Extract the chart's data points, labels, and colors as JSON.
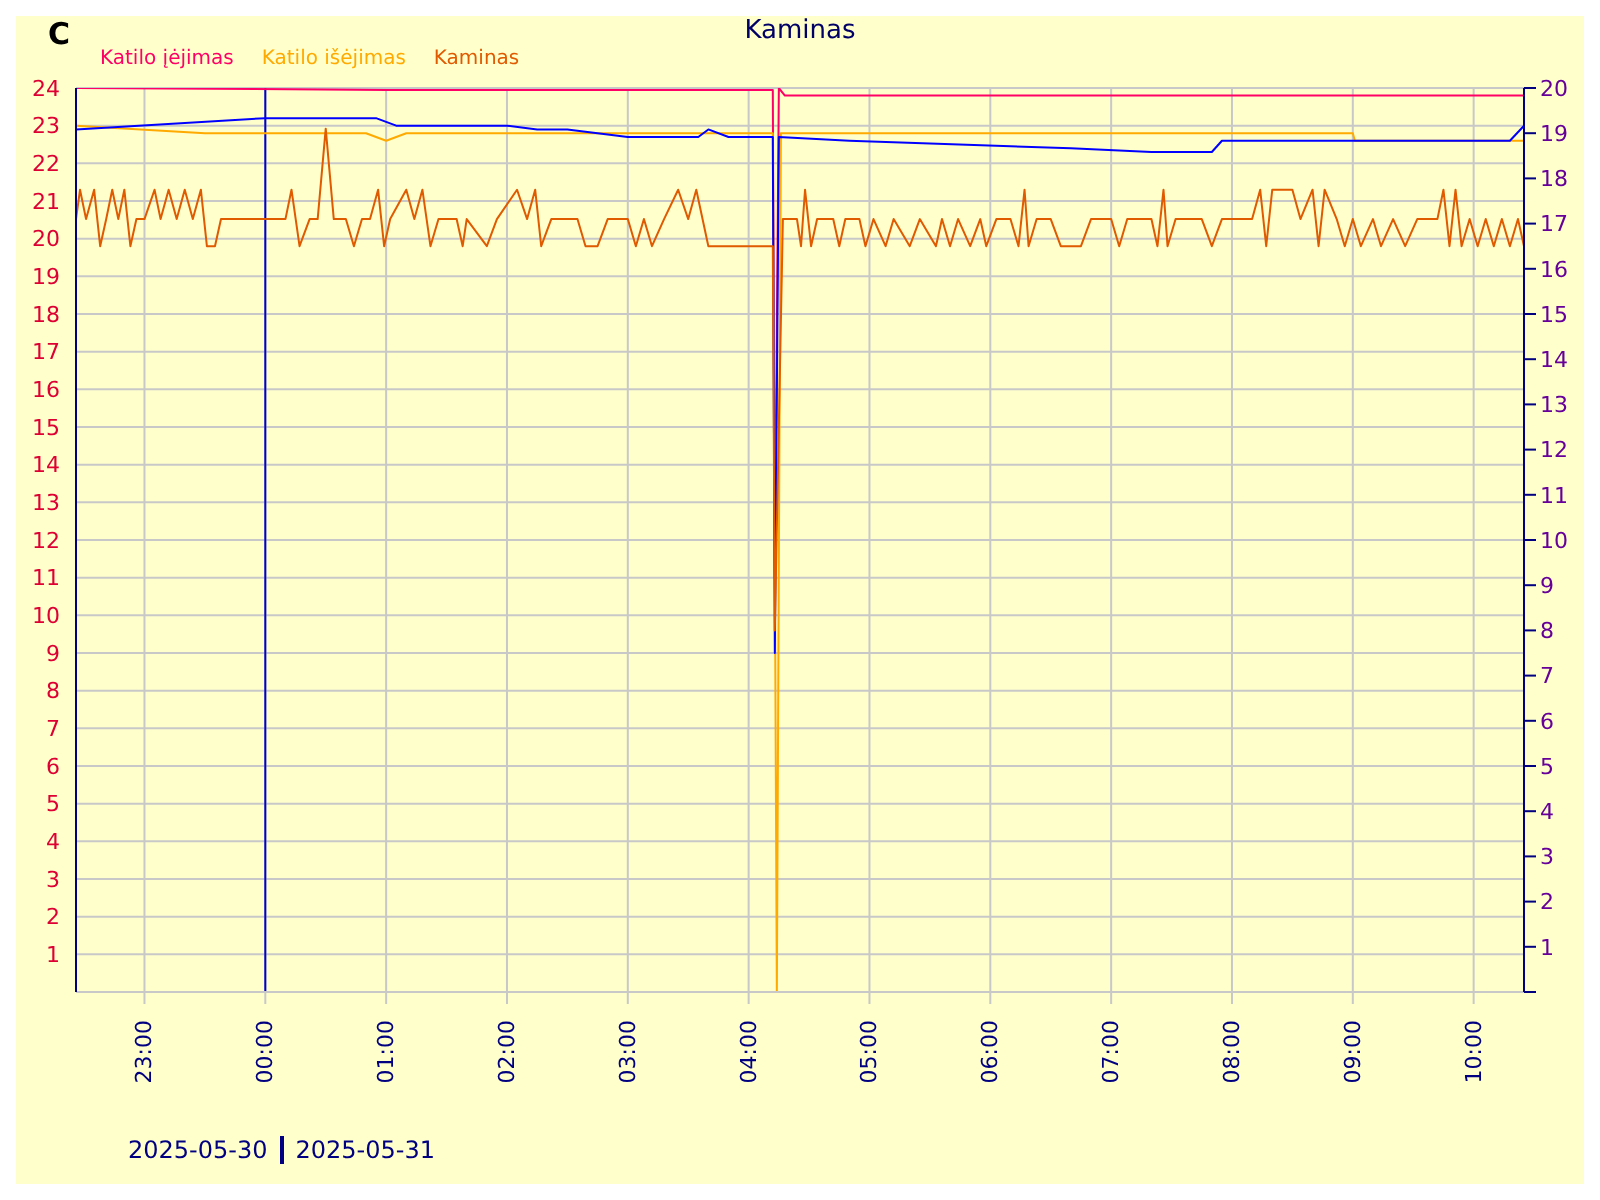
{
  "chart_data": {
    "type": "line",
    "title": "Kaminas",
    "ylabel": "C",
    "annotations": [
      "2025-05-30",
      "2025-05-31"
    ],
    "xlim": [
      "2025-05-30T22:26",
      "2025-05-31T10:25"
    ],
    "xticks": [
      {
        "value": "2025-05-30T23:00",
        "label": "23:00"
      },
      {
        "value": "2025-05-31T00:00",
        "label": "00:00"
      },
      {
        "value": "2025-05-31T01:00",
        "label": "01:00"
      },
      {
        "value": "2025-05-31T02:00",
        "label": "02:00"
      },
      {
        "value": "2025-05-31T03:00",
        "label": "03:00"
      },
      {
        "value": "2025-05-31T04:00",
        "label": "04:00"
      },
      {
        "value": "2025-05-31T05:00",
        "label": "05:00"
      },
      {
        "value": "2025-05-31T06:00",
        "label": "06:00"
      },
      {
        "value": "2025-05-31T07:00",
        "label": "07:00"
      },
      {
        "value": "2025-05-31T08:00",
        "label": "08:00"
      },
      {
        "value": "2025-05-31T09:00",
        "label": "09:00"
      },
      {
        "value": "2025-05-31T10:00",
        "label": "10:00"
      }
    ],
    "ylim": [
      0,
      24
    ],
    "yticks": [
      {
        "value": 0,
        "label": null
      },
      1,
      2,
      3,
      4,
      5,
      6,
      7,
      8,
      9,
      10,
      11,
      12,
      13,
      14,
      15,
      16,
      17,
      18,
      19,
      20,
      21,
      22,
      23,
      24
    ],
    "y2lim": [
      0,
      20
    ],
    "y2ticks": [
      {
        "value": 0,
        "label": null
      },
      1,
      2,
      3,
      4,
      5,
      6,
      7,
      8,
      9,
      10,
      11,
      12,
      13,
      14,
      15,
      16,
      17,
      18,
      19,
      20
    ],
    "grid": true,
    "legend": "top left",
    "marker": "none",
    "line_style": "solid",
    "ref_lines": [
      {
        "axis": "x",
        "value": "2025-05-31T00:00",
        "color": "#0000cc"
      }
    ],
    "series": [
      {
        "name": "Katilo įėjimas",
        "color": "#ff0066",
        "x": [
          "2025-05-30T22:26",
          "2025-05-31T01:00",
          "2025-05-31T04:12",
          "2025-05-31T04:13",
          "2025-05-31T04:15",
          "2025-05-31T04:18",
          "2025-05-31T05:30",
          "2025-05-31T10:25"
        ],
        "values": [
          24,
          23.95,
          23.95,
          11,
          24,
          23.8,
          23.8,
          23.8
        ]
      },
      {
        "name": "Katilo išėjimas",
        "color": "#ffaa00",
        "x": [
          "2025-05-30T22:26",
          "2025-05-30T23:30",
          "2025-05-31T00:50",
          "2025-05-31T01:00",
          "2025-05-31T01:10",
          "2025-05-31T04:12",
          "2025-05-31T04:14",
          "2025-05-31T04:16",
          "2025-05-31T09:00",
          "2025-05-31T09:01",
          "2025-05-31T10:25"
        ],
        "values": [
          23.0,
          22.8,
          22.8,
          22.6,
          22.8,
          22.8,
          0,
          22.8,
          22.8,
          22.6,
          22.6
        ]
      },
      {
        "color": "#0000ff",
        "x": [
          "2025-05-30T22:26",
          "2025-05-31T00:00",
          "2025-05-31T00:55",
          "2025-05-31T01:05",
          "2025-05-31T02:00",
          "2025-05-31T02:15",
          "2025-05-31T02:30",
          "2025-05-31T03:00",
          "2025-05-31T03:35",
          "2025-05-31T03:40",
          "2025-05-31T03:50",
          "2025-05-31T04:12",
          "2025-05-31T04:13",
          "2025-05-31T04:15",
          "2025-05-31T04:50",
          "2025-05-31T06:40",
          "2025-05-31T07:20",
          "2025-05-31T07:50",
          "2025-05-31T07:55",
          "2025-05-31T10:18",
          "2025-05-31T10:25"
        ],
        "values": [
          22.9,
          23.2,
          23.2,
          23.0,
          23.0,
          22.9,
          22.9,
          22.7,
          22.7,
          22.9,
          22.7,
          22.7,
          9,
          22.7,
          22.6,
          22.4,
          22.3,
          22.3,
          22.6,
          22.6,
          23.0
        ]
      },
      {
        "name": "Kaminas",
        "color": "#e05a00",
        "axis": "y2",
        "x": [
          "2025-05-30T22:26",
          "2025-05-30T22:28",
          "2025-05-30T22:31",
          "2025-05-30T22:35",
          "2025-05-30T22:38",
          "2025-05-30T22:41",
          "2025-05-30T22:44",
          "2025-05-30T22:47",
          "2025-05-30T22:50",
          "2025-05-30T22:53",
          "2025-05-30T22:56",
          "2025-05-30T23:00",
          "2025-05-30T23:05",
          "2025-05-30T23:08",
          "2025-05-30T23:12",
          "2025-05-30T23:16",
          "2025-05-30T23:20",
          "2025-05-30T23:24",
          "2025-05-30T23:28",
          "2025-05-30T23:31",
          "2025-05-30T23:35",
          "2025-05-30T23:38",
          "2025-05-31T00:10",
          "2025-05-31T00:13",
          "2025-05-31T00:17",
          "2025-05-31T00:22",
          "2025-05-31T00:26",
          "2025-05-31T00:30",
          "2025-05-31T00:34",
          "2025-05-31T00:40",
          "2025-05-31T00:44",
          "2025-05-31T00:48",
          "2025-05-31T00:52",
          "2025-05-31T00:56",
          "2025-05-31T00:59",
          "2025-05-31T01:02",
          "2025-05-31T01:10",
          "2025-05-31T01:14",
          "2025-05-31T01:18",
          "2025-05-31T01:22",
          "2025-05-31T01:26",
          "2025-05-31T01:35",
          "2025-05-31T01:38",
          "2025-05-31T01:40",
          "2025-05-31T01:50",
          "2025-05-31T01:55",
          "2025-05-31T02:05",
          "2025-05-31T02:10",
          "2025-05-31T02:14",
          "2025-05-31T02:17",
          "2025-05-31T02:22",
          "2025-05-31T02:35",
          "2025-05-31T02:39",
          "2025-05-31T02:45",
          "2025-05-31T02:50",
          "2025-05-31T03:00",
          "2025-05-31T03:04",
          "2025-05-31T03:08",
          "2025-05-31T03:12",
          "2025-05-31T03:18",
          "2025-05-31T03:25",
          "2025-05-31T03:30",
          "2025-05-31T03:34",
          "2025-05-31T03:40",
          "2025-05-31T04:10",
          "2025-05-31T04:12",
          "2025-05-31T04:13",
          "2025-05-31T04:17",
          "2025-05-31T04:24",
          "2025-05-31T04:26",
          "2025-05-31T04:28",
          "2025-05-31T04:31",
          "2025-05-31T04:34",
          "2025-05-31T04:42",
          "2025-05-31T04:45",
          "2025-05-31T04:48",
          "2025-05-31T04:55",
          "2025-05-31T04:58",
          "2025-05-31T05:02",
          "2025-05-31T05:08",
          "2025-05-31T05:12",
          "2025-05-31T05:20",
          "2025-05-31T05:25",
          "2025-05-31T05:33",
          "2025-05-31T05:36",
          "2025-05-31T05:40",
          "2025-05-31T05:44",
          "2025-05-31T05:50",
          "2025-05-31T05:55",
          "2025-05-31T05:58",
          "2025-05-31T06:03",
          "2025-05-31T06:10",
          "2025-05-31T06:14",
          "2025-05-31T06:17",
          "2025-05-31T06:19",
          "2025-05-31T06:23",
          "2025-05-31T06:30",
          "2025-05-31T06:35",
          "2025-05-31T06:45",
          "2025-05-31T06:50",
          "2025-05-31T07:00",
          "2025-05-31T07:04",
          "2025-05-31T07:08",
          "2025-05-31T07:20",
          "2025-05-31T07:23",
          "2025-05-31T07:26",
          "2025-05-31T07:28",
          "2025-05-31T07:32",
          "2025-05-31T07:45",
          "2025-05-31T07:50",
          "2025-05-31T07:55",
          "2025-05-31T08:10",
          "2025-05-31T08:14",
          "2025-05-31T08:17",
          "2025-05-31T08:20",
          "2025-05-31T08:30",
          "2025-05-31T08:34",
          "2025-05-31T08:40",
          "2025-05-31T08:43",
          "2025-05-31T08:46",
          "2025-05-31T08:52",
          "2025-05-31T08:56",
          "2025-05-31T09:00",
          "2025-05-31T09:04",
          "2025-05-31T09:10",
          "2025-05-31T09:14",
          "2025-05-31T09:20",
          "2025-05-31T09:26",
          "2025-05-31T09:32",
          "2025-05-31T09:42",
          "2025-05-31T09:45",
          "2025-05-31T09:48",
          "2025-05-31T09:51",
          "2025-05-31T09:54",
          "2025-05-31T09:58",
          "2025-05-31T10:02",
          "2025-05-31T10:06",
          "2025-05-31T10:10",
          "2025-05-31T10:14",
          "2025-05-31T10:18",
          "2025-05-31T10:22",
          "2025-05-31T10:25"
        ],
        "values": [
          17.1,
          17.75,
          17.1,
          17.75,
          16.5,
          17.1,
          17.75,
          17.1,
          17.75,
          16.5,
          17.1,
          17.1,
          17.75,
          17.1,
          17.75,
          17.1,
          17.75,
          17.1,
          17.75,
          16.5,
          16.5,
          17.1,
          17.1,
          17.75,
          16.5,
          17.1,
          17.1,
          19.1,
          17.1,
          17.1,
          16.5,
          17.1,
          17.1,
          17.75,
          16.5,
          17.1,
          17.75,
          17.1,
          17.75,
          16.5,
          17.1,
          17.1,
          16.5,
          17.1,
          16.5,
          17.1,
          17.75,
          17.1,
          17.75,
          16.5,
          17.1,
          17.1,
          16.5,
          16.5,
          17.1,
          17.1,
          16.5,
          17.1,
          16.5,
          17.1,
          17.75,
          17.1,
          17.75,
          16.5,
          16.5,
          16.5,
          8,
          17.1,
          17.1,
          16.5,
          17.75,
          16.5,
          17.1,
          17.1,
          16.5,
          17.1,
          17.1,
          16.5,
          17.1,
          16.5,
          17.1,
          16.5,
          17.1,
          16.5,
          17.1,
          16.5,
          17.1,
          16.5,
          17.1,
          16.5,
          17.1,
          17.1,
          16.5,
          17.75,
          16.5,
          17.1,
          17.1,
          16.5,
          16.5,
          17.1,
          17.1,
          16.5,
          17.1,
          17.1,
          16.5,
          17.75,
          16.5,
          17.1,
          17.1,
          16.5,
          17.1,
          17.1,
          17.75,
          16.5,
          17.75,
          17.75,
          17.1,
          17.75,
          16.5,
          17.75,
          17.1,
          16.5,
          17.1,
          16.5,
          17.1,
          16.5,
          17.1,
          16.5,
          17.1,
          17.1,
          17.75,
          16.5,
          17.75,
          16.5,
          17.1,
          16.5,
          17.1,
          16.5,
          17.1,
          16.5,
          17.1,
          16.5
        ]
      }
    ]
  }
}
